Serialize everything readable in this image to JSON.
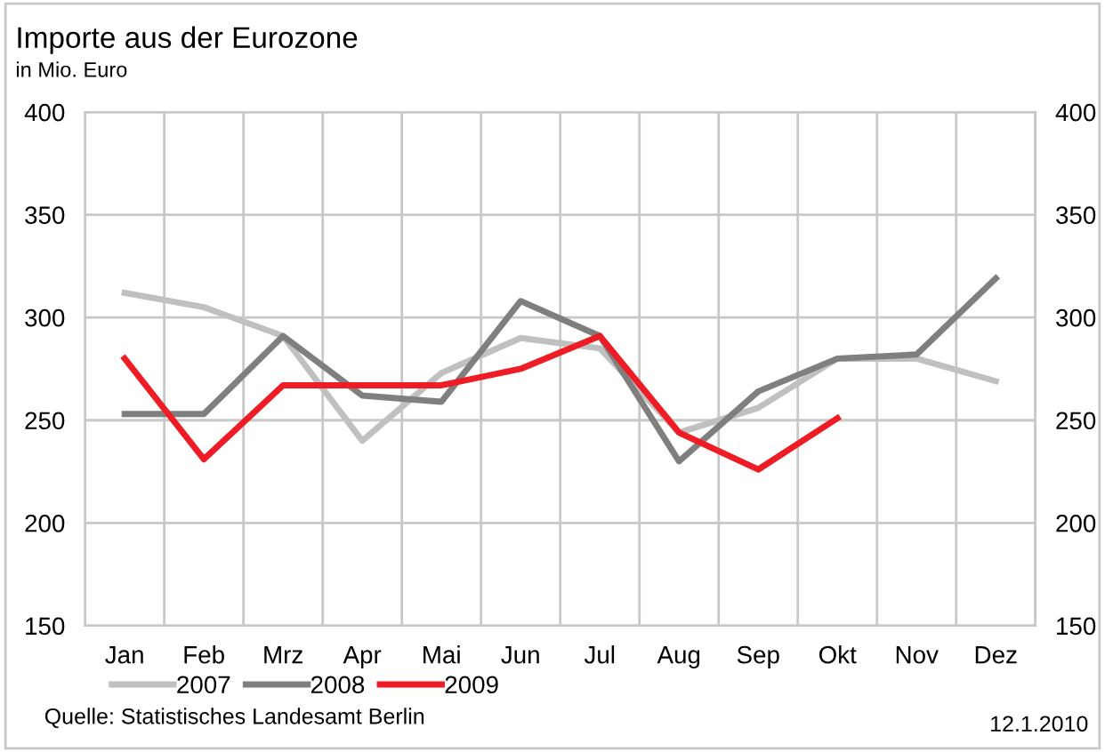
{
  "chart_data": {
    "type": "line",
    "title": "Importe aus der Eurozone",
    "subtitle": "in Mio. Euro",
    "categories": [
      "Jan",
      "Feb",
      "Mrz",
      "Apr",
      "Mai",
      "Jun",
      "Jul",
      "Aug",
      "Sep",
      "Okt",
      "Nov",
      "Dez"
    ],
    "series": [
      {
        "name": "2007",
        "color": "#c0c0c0",
        "values": [
          312,
          305,
          291,
          240,
          273,
          290,
          285,
          244,
          256,
          280,
          280,
          269
        ]
      },
      {
        "name": "2008",
        "color": "#7f7f7f",
        "values": [
          253,
          253,
          291,
          262,
          259,
          308,
          291,
          230,
          264,
          280,
          282,
          319
        ]
      },
      {
        "name": "2009",
        "color": "#ee1c25",
        "values": [
          280,
          231,
          267,
          267,
          267,
          275,
          291,
          244,
          226,
          251,
          null,
          null
        ]
      }
    ],
    "ylim": [
      150,
      400
    ],
    "yticks": [
      150,
      200,
      250,
      300,
      350,
      400
    ],
    "y2lim": [
      150,
      400
    ],
    "y2ticks": [
      150,
      200,
      250,
      300,
      350,
      400
    ],
    "grid": true,
    "legend": "bottom left",
    "marker": "none",
    "line_style": "solid",
    "annotations": [
      "Quelle: Statistisches Landesamt Berlin",
      "12.1.2010"
    ]
  }
}
